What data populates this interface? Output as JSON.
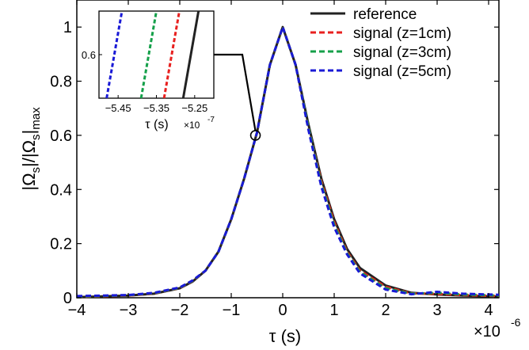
{
  "chart_data": {
    "type": "line",
    "xlabel": "τ (s)",
    "x_multiplier": "×10",
    "x_multiplier_exp": "-6",
    "ylabel_parts": [
      "|Ω",
      "s",
      "|/|Ω",
      "s",
      "|",
      "max"
    ],
    "xlim": [
      -4,
      4.2
    ],
    "ylim": [
      0,
      1.1
    ],
    "x_ticks": [
      -4,
      -3,
      -2,
      -1,
      0,
      1,
      2,
      3,
      4
    ],
    "x_tick_labels": [
      "−4",
      "−3",
      "−2",
      "−1",
      "0",
      "1",
      "2",
      "3",
      "4"
    ],
    "y_ticks": [
      0,
      0.2,
      0.4,
      0.6,
      0.8,
      1
    ],
    "y_tick_labels": [
      "0",
      "0.2",
      "0.4",
      "0.6",
      "0.8",
      "1"
    ],
    "grid": false,
    "legend_position": "top-right",
    "series": [
      {
        "name": "reference",
        "color": "#222222",
        "style": "solid",
        "x": [
          -4,
          -3,
          -2.5,
          -2,
          -1.75,
          -1.5,
          -1.25,
          -1,
          -0.75,
          -0.5,
          -0.25,
          0,
          0.25,
          0.5,
          0.75,
          1,
          1.25,
          1.5,
          2,
          2.5,
          3,
          3.5,
          4,
          4.2
        ],
        "y": [
          0.002,
          0.008,
          0.015,
          0.035,
          0.06,
          0.1,
          0.17,
          0.29,
          0.44,
          0.61,
          0.86,
          1.0,
          0.86,
          0.64,
          0.44,
          0.29,
          0.18,
          0.11,
          0.045,
          0.018,
          0.012,
          0.008,
          0.005,
          0.004
        ]
      },
      {
        "name": "signal (z=1cm)",
        "color": "#e8201f",
        "style": "dashed",
        "x": [
          -4,
          -3,
          -2.5,
          -2,
          -1.75,
          -1.5,
          -1.25,
          -1,
          -0.75,
          -0.5,
          -0.25,
          0,
          0.25,
          0.5,
          0.75,
          1,
          1.25,
          1.5,
          2,
          2.5,
          3,
          3.5,
          4,
          4.2
        ],
        "y": [
          0.003,
          0.008,
          0.016,
          0.036,
          0.062,
          0.1,
          0.17,
          0.29,
          0.44,
          0.61,
          0.86,
          1.0,
          0.86,
          0.63,
          0.43,
          0.28,
          0.17,
          0.1,
          0.04,
          0.016,
          0.014,
          0.01,
          0.007,
          0.006
        ]
      },
      {
        "name": "signal (z=3cm)",
        "color": "#15a04a",
        "style": "dashed",
        "x": [
          -4,
          -3,
          -2.5,
          -2,
          -1.75,
          -1.5,
          -1.25,
          -1,
          -0.75,
          -0.5,
          -0.25,
          0,
          0.25,
          0.5,
          0.75,
          1,
          1.25,
          1.5,
          2,
          2.5,
          3,
          3.5,
          4,
          4.2
        ],
        "y": [
          0.004,
          0.009,
          0.017,
          0.037,
          0.063,
          0.1,
          0.17,
          0.29,
          0.44,
          0.61,
          0.86,
          1.0,
          0.86,
          0.63,
          0.42,
          0.27,
          0.165,
          0.095,
          0.035,
          0.015,
          0.018,
          0.012,
          0.009,
          0.008
        ]
      },
      {
        "name": "signal (z=5cm)",
        "color": "#1a1ad6",
        "style": "dashed",
        "x": [
          -4,
          -3,
          -2.5,
          -2,
          -1.75,
          -1.5,
          -1.25,
          -1,
          -0.75,
          -0.5,
          -0.25,
          0,
          0.25,
          0.5,
          0.75,
          1,
          1.25,
          1.5,
          2,
          2.5,
          3,
          3.5,
          4,
          4.2
        ],
        "y": [
          0.006,
          0.01,
          0.018,
          0.038,
          0.064,
          0.1,
          0.17,
          0.29,
          0.44,
          0.61,
          0.86,
          1.0,
          0.86,
          0.62,
          0.41,
          0.26,
          0.16,
          0.09,
          0.03,
          0.013,
          0.022,
          0.015,
          0.012,
          0.011
        ]
      }
    ],
    "inset": {
      "xlabel": "τ (s)",
      "x_multiplier": "×10",
      "x_multiplier_exp": "-7",
      "xlim": [
        -5.5,
        -5.2
      ],
      "ylim": [
        0.57,
        0.63
      ],
      "x_ticks": [
        -5.45,
        -5.35,
        -5.25
      ],
      "x_tick_labels": [
        "−5.45",
        "−5.35",
        "−5.25"
      ],
      "y_ticks": [
        0.6
      ],
      "y_tick_labels": [
        "0.6"
      ],
      "zoom_center": {
        "x": -0.53,
        "y": 0.6
      },
      "lines": [
        {
          "name": "signal (z=5cm)",
          "color": "#1a1ad6",
          "style": "dashed",
          "x0": -5.48,
          "x1": -5.44
        },
        {
          "name": "signal (z=3cm)",
          "color": "#15a04a",
          "style": "dashed",
          "x0": -5.39,
          "x1": -5.35
        },
        {
          "name": "signal (z=1cm)",
          "color": "#e8201f",
          "style": "dashed",
          "x0": -5.33,
          "x1": -5.29
        },
        {
          "name": "reference",
          "color": "#222222",
          "style": "solid",
          "x0": -5.28,
          "x1": -5.24
        }
      ]
    }
  }
}
